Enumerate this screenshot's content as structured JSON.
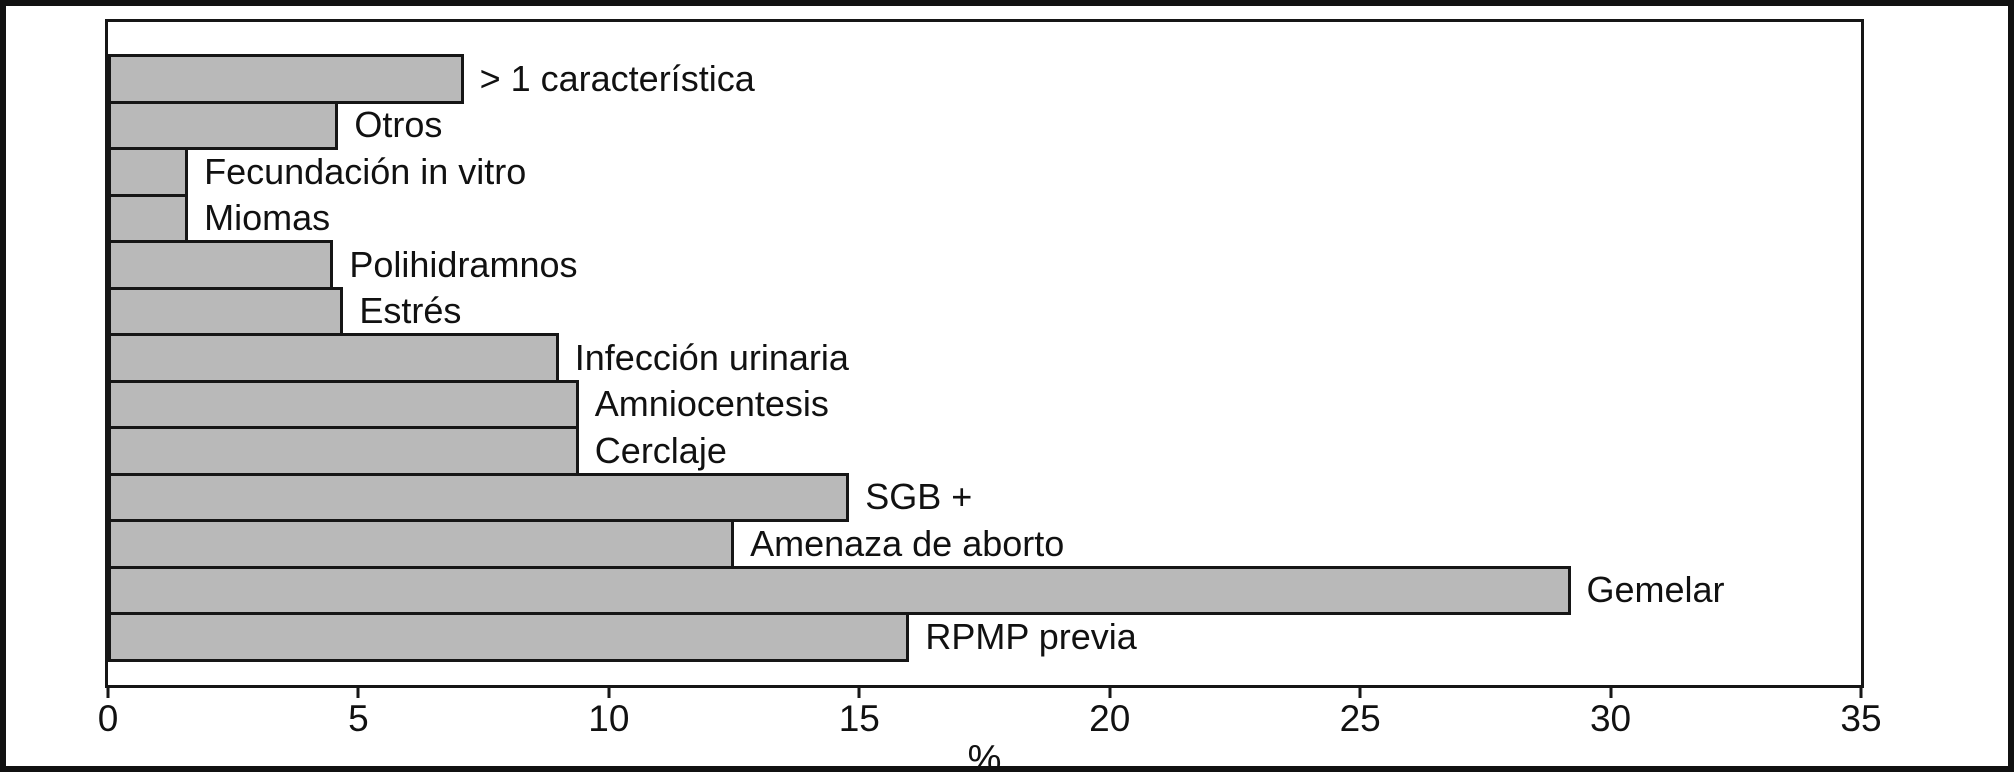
{
  "figure": {
    "background": "#ffffff",
    "border_color": "#111111"
  },
  "chart_data": {
    "type": "bar",
    "orientation": "horizontal",
    "title": "",
    "xlabel": "%",
    "ylabel": "",
    "xlim": [
      0,
      35
    ],
    "xticks": [
      0,
      5,
      10,
      15,
      20,
      25,
      30,
      35
    ],
    "grid": false,
    "legend": null,
    "bar_fill": "#b9b9b9",
    "bar_border": "#161616",
    "categories": [
      "> 1 característica",
      "Otros",
      "Fecundación in vitro",
      "Miomas",
      "Polihidramnos",
      "Estrés",
      "Infección urinaria",
      "Amniocentesis",
      "Cerclaje",
      "SGB +",
      "Amenaza de aborto",
      "Gemelar",
      "RPMP previa"
    ],
    "values": [
      7.1,
      4.6,
      1.6,
      1.6,
      4.5,
      4.7,
      9.0,
      9.4,
      9.4,
      14.8,
      12.5,
      29.2,
      16.0
    ]
  }
}
